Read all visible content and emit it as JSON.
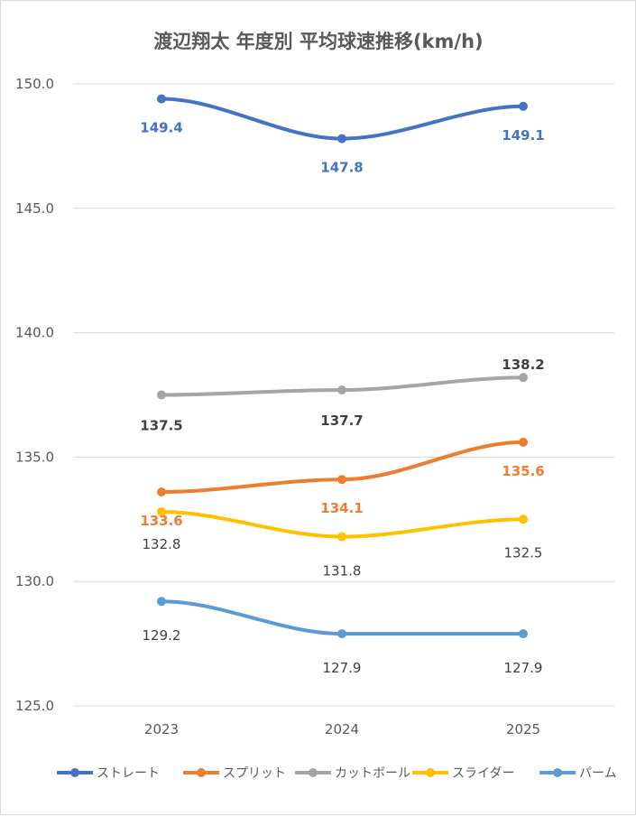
{
  "chart_data": {
    "type": "line",
    "title": "渡辺翔太 年度別 平均球速推移(km/h)",
    "categories": [
      "2023",
      "2024",
      "2025"
    ],
    "ylim": [
      125.0,
      150.0
    ],
    "yticks": [
      "125.0",
      "130.0",
      "135.0",
      "140.0",
      "145.0",
      "150.0"
    ],
    "grid": true,
    "legend": "bottom",
    "series": [
      {
        "name": "ストレート",
        "values": [
          149.4,
          147.8,
          149.1
        ],
        "labels": [
          "149.4",
          "147.8",
          "149.1"
        ],
        "color": "#4472C4",
        "label_color": "#4472C4",
        "label_bold": true,
        "label_pos": "below"
      },
      {
        "name": "スプリット",
        "values": [
          133.6,
          134.1,
          135.6
        ],
        "labels": [
          "133.6",
          "134.1",
          "135.6"
        ],
        "color": "#ED7D31",
        "label_color": "#ED7D31",
        "label_bold": true,
        "label_pos": "below"
      },
      {
        "name": "カットボール",
        "values": [
          137.5,
          137.7,
          138.2
        ],
        "labels": [
          "137.5",
          "137.7",
          "138.2"
        ],
        "color": "#A5A5A5",
        "label_color": "#404040",
        "label_bold": true,
        "label_pos": "mixed"
      },
      {
        "name": "スライダー",
        "values": [
          132.8,
          131.8,
          132.5
        ],
        "labels": [
          "132.8",
          "131.8",
          "132.5"
        ],
        "color": "#FFC000",
        "label_color": "#404040",
        "label_bold": false,
        "label_pos": "below"
      },
      {
        "name": "パーム",
        "values": [
          129.2,
          127.9,
          127.9
        ],
        "labels": [
          "129.2",
          "127.9",
          "127.9"
        ],
        "color": "#5B9BD5",
        "label_color": "#404040",
        "label_bold": false,
        "label_pos": "below"
      }
    ]
  }
}
